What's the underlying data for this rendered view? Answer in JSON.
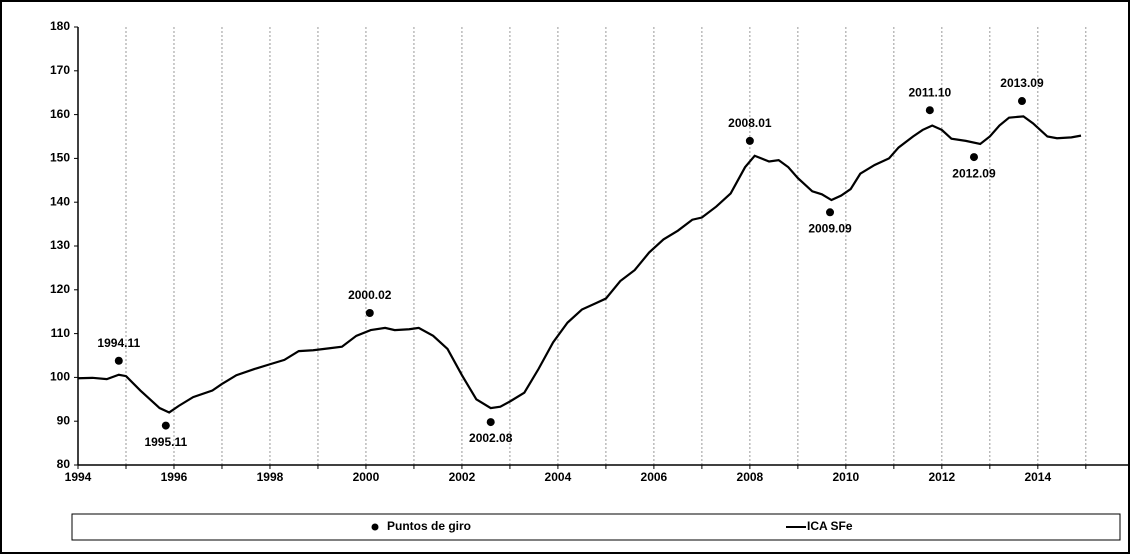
{
  "chart_data": {
    "type": "line",
    "xlim": [
      1994,
      2015.9
    ],
    "xticks": [
      1994,
      1996,
      1998,
      2000,
      2002,
      2004,
      2006,
      2008,
      2010,
      2012,
      2014
    ],
    "x_minor_ticks": [
      1995,
      1997,
      1999,
      2001,
      2003,
      2005,
      2007,
      2009,
      2011,
      2013,
      2015
    ],
    "ylim": [
      80,
      180
    ],
    "yticks": [
      80,
      90,
      100,
      110,
      120,
      130,
      140,
      150,
      160,
      170,
      180
    ],
    "grid": true,
    "legend": "bottom",
    "series": [
      {
        "name": "Puntos de giro",
        "type": "scatter",
        "color": "#000000",
        "x": [
          1994.85,
          1995.83,
          2000.08,
          2002.6,
          2008.0,
          2009.67,
          2011.75,
          2012.67,
          2013.67
        ],
        "values": [
          103.8,
          89,
          114.7,
          89.8,
          154,
          137.7,
          161,
          150.3,
          163.1
        ],
        "point_labels": [
          "1994.11",
          "1995.11",
          "2000.02",
          "2002.08",
          "2008.01",
          "2009.09",
          "2011.10",
          "2012.09",
          "2013.09"
        ],
        "label_positions": [
          "above",
          "below",
          "above",
          "below",
          "above",
          "below",
          "above",
          "below",
          "above"
        ]
      },
      {
        "name": "ICA SFe",
        "type": "line",
        "color": "#000000",
        "x": [
          1994.0,
          1994.3,
          1994.6,
          1994.85,
          1995.0,
          1995.3,
          1995.5,
          1995.7,
          1995.9,
          1996.1,
          1996.4,
          1996.8,
          1997.0,
          1997.3,
          1997.7,
          1998.0,
          1998.3,
          1998.6,
          1998.9,
          1999.2,
          1999.5,
          1999.8,
          2000.1,
          2000.4,
          2000.6,
          2000.9,
          2001.1,
          2001.4,
          2001.7,
          2002.0,
          2002.3,
          2002.6,
          2002.8,
          2003.0,
          2003.3,
          2003.6,
          2003.9,
          2004.2,
          2004.5,
          2004.8,
          2005.0,
          2005.3,
          2005.6,
          2005.9,
          2006.2,
          2006.5,
          2006.8,
          2007.0,
          2007.3,
          2007.6,
          2007.9,
          2008.1,
          2008.4,
          2008.6,
          2008.8,
          2009.0,
          2009.3,
          2009.5,
          2009.7,
          2009.9,
          2010.1,
          2010.3,
          2010.6,
          2010.9,
          2011.1,
          2011.4,
          2011.6,
          2011.8,
          2012.0,
          2012.2,
          2012.5,
          2012.8,
          2013.0,
          2013.2,
          2013.4,
          2013.7,
          2013.9,
          2014.2,
          2014.4,
          2014.7,
          2014.9
        ],
        "values": [
          99.8,
          99.9,
          99.6,
          100.6,
          100.3,
          97,
          95,
          93,
          92,
          93.5,
          95.5,
          97,
          98.5,
          100.5,
          102,
          103,
          104,
          106,
          106.2,
          106.6,
          107,
          109.5,
          110.8,
          111.3,
          110.8,
          111,
          111.3,
          109.5,
          106.5,
          100.5,
          95,
          93,
          93.3,
          94.5,
          96.5,
          102,
          108,
          112.5,
          115.5,
          117,
          118,
          122,
          124.5,
          128.5,
          131.5,
          133.5,
          136,
          136.5,
          139,
          142,
          148,
          150.6,
          149.3,
          149.6,
          148,
          145.5,
          142.5,
          141.8,
          140.5,
          141.5,
          143,
          146.5,
          148.5,
          150,
          152.5,
          155,
          156.5,
          157.5,
          156.5,
          154.5,
          154,
          153.3,
          155,
          157.5,
          159.3,
          159.6,
          158,
          155,
          154.6,
          154.8,
          155.2
        ]
      }
    ]
  }
}
